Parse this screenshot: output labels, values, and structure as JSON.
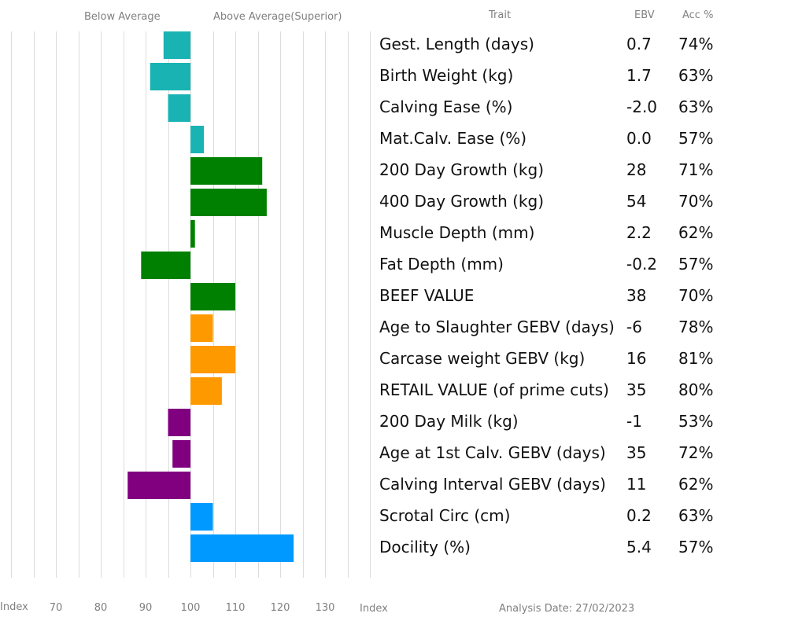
{
  "headers": {
    "below": "Below Average",
    "above": "Above Average(Superior)",
    "trait": "Trait",
    "ebv": "EBV",
    "acc": "Acc %"
  },
  "footer": {
    "index_left": "Index",
    "index_right": "Index",
    "analysis_date": "Analysis Date: 27/02/2023"
  },
  "chart_data": {
    "type": "bar",
    "orientation": "horizontal",
    "baseline": 100,
    "xlim": [
      60,
      140
    ],
    "xticks": [
      70,
      80,
      90,
      100,
      110,
      120,
      130
    ],
    "grid": true,
    "rows": [
      {
        "trait": "Gest. Length (days)",
        "ebv": "0.7",
        "acc": "74%",
        "index": 94,
        "color": "#1ab3b3"
      },
      {
        "trait": "Birth Weight (kg)",
        "ebv": "1.7",
        "acc": "63%",
        "index": 91,
        "color": "#1ab3b3"
      },
      {
        "trait": "Calving Ease (%)",
        "ebv": "-2.0",
        "acc": "63%",
        "index": 95,
        "color": "#1ab3b3"
      },
      {
        "trait": "Mat.Calv. Ease (%)",
        "ebv": "0.0",
        "acc": "57%",
        "index": 103,
        "color": "#1ab3b3"
      },
      {
        "trait": "200 Day Growth (kg)",
        "ebv": "28",
        "acc": "71%",
        "index": 116,
        "color": "#008000"
      },
      {
        "trait": "400 Day Growth (kg)",
        "ebv": "54",
        "acc": "70%",
        "index": 117,
        "color": "#008000"
      },
      {
        "trait": "Muscle Depth (mm)",
        "ebv": "2.2",
        "acc": "62%",
        "index": 101,
        "color": "#008000"
      },
      {
        "trait": "Fat Depth (mm)",
        "ebv": "-0.2",
        "acc": "57%",
        "index": 89,
        "color": "#008000"
      },
      {
        "trait": "BEEF VALUE",
        "ebv": "38",
        "acc": "70%",
        "index": 110,
        "color": "#008000"
      },
      {
        "trait": "Age to Slaughter GEBV (days)",
        "ebv": "-6",
        "acc": "78%",
        "index": 105,
        "color": "#ff9900"
      },
      {
        "trait": "Carcase weight GEBV (kg)",
        "ebv": "16",
        "acc": "81%",
        "index": 110,
        "color": "#ff9900"
      },
      {
        "trait": "RETAIL VALUE (of prime cuts)",
        "ebv": "35",
        "acc": "80%",
        "index": 107,
        "color": "#ff9900"
      },
      {
        "trait": "200 Day Milk (kg)",
        "ebv": "-1",
        "acc": "53%",
        "index": 95,
        "color": "#800080"
      },
      {
        "trait": "Age at 1st Calv. GEBV (days)",
        "ebv": "35",
        "acc": "72%",
        "index": 96,
        "color": "#800080"
      },
      {
        "trait": "Calving Interval GEBV (days)",
        "ebv": "11",
        "acc": "62%",
        "index": 86,
        "color": "#800080"
      },
      {
        "trait": "Scrotal Circ (cm)",
        "ebv": "0.2",
        "acc": "63%",
        "index": 105,
        "color": "#0099ff"
      },
      {
        "trait": "Docility (%)",
        "ebv": "5.4",
        "acc": "57%",
        "index": 123,
        "color": "#0099ff"
      }
    ]
  }
}
